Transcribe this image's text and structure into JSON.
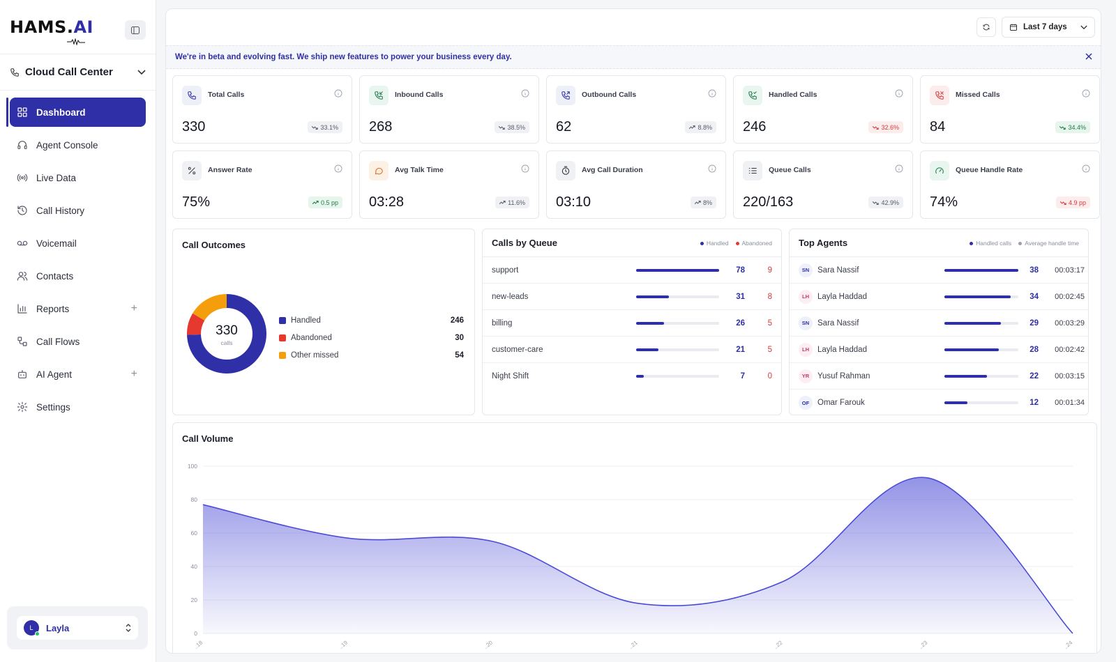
{
  "brand": {
    "name": "HAMS.",
    "suffix": "AI"
  },
  "workspace": {
    "name": "Cloud Call Center"
  },
  "nav": [
    {
      "label": "Dashboard",
      "icon": "grid-icon",
      "active": true
    },
    {
      "label": "Agent Console",
      "icon": "headset-icon"
    },
    {
      "label": "Live Data",
      "icon": "broadcast-icon"
    },
    {
      "label": "Call History",
      "icon": "history-icon"
    },
    {
      "label": "Voicemail",
      "icon": "voicemail-icon"
    },
    {
      "label": "Contacts",
      "icon": "users-icon"
    },
    {
      "label": "Reports",
      "icon": "bar-chart-icon",
      "expandable": true
    },
    {
      "label": "Call Flows",
      "icon": "flow-icon"
    },
    {
      "label": "AI Agent",
      "icon": "bot-icon",
      "expandable": true
    },
    {
      "label": "Settings",
      "icon": "gear-icon"
    }
  ],
  "user": {
    "initial": "L",
    "name": "Layla"
  },
  "topbar": {
    "range_label": "Last 7 days"
  },
  "banner": {
    "text": "We're in beta and evolving fast. We ship new features to power your business every day."
  },
  "stats": [
    {
      "title": "Total Calls",
      "value": "330",
      "delta": "33.1%",
      "trend": "down",
      "tone": "neutral",
      "icon": "phone-icon"
    },
    {
      "title": "Inbound Calls",
      "value": "268",
      "delta": "38.5%",
      "trend": "down",
      "tone": "neutral",
      "icon": "phone-incoming-icon"
    },
    {
      "title": "Outbound Calls",
      "value": "62",
      "delta": "8.8%",
      "trend": "up",
      "tone": "neutral",
      "icon": "phone-outgoing-icon"
    },
    {
      "title": "Handled Calls",
      "value": "246",
      "delta": "32.6%",
      "trend": "down",
      "tone": "red",
      "icon": "phone-handled-icon"
    },
    {
      "title": "Missed Calls",
      "value": "84",
      "delta": "34.4%",
      "trend": "down",
      "tone": "green",
      "icon": "phone-missed-icon"
    },
    {
      "title": "Answer Rate",
      "value": "75%",
      "delta": "0.5 pp",
      "trend": "up",
      "tone": "green",
      "icon": "percent-icon"
    },
    {
      "title": "Avg Talk Time",
      "value": "03:28",
      "delta": "11.6%",
      "trend": "up",
      "tone": "neutral",
      "icon": "chat-icon"
    },
    {
      "title": "Avg Call Duration",
      "value": "03:10",
      "delta": "8%",
      "trend": "up",
      "tone": "neutral",
      "icon": "timer-icon"
    },
    {
      "title": "Queue Calls",
      "value": "220/163",
      "delta": "42.9%",
      "trend": "down",
      "tone": "neutral",
      "icon": "list-icon"
    },
    {
      "title": "Queue Handle Rate",
      "value": "74%",
      "delta": "4.9 pp",
      "trend": "down",
      "tone": "red",
      "icon": "gauge-icon"
    }
  ],
  "outcomes": {
    "title": "Call Outcomes",
    "total": "330",
    "total_label": "calls",
    "items": [
      {
        "label": "Handled",
        "value": 246,
        "color": "#2f2fa8"
      },
      {
        "label": "Abandoned",
        "value": 30,
        "color": "#e5392f"
      },
      {
        "label": "Other missed",
        "value": 54,
        "color": "#f59e0b"
      }
    ]
  },
  "queues": {
    "title": "Calls by Queue",
    "legend": [
      "Handled",
      "Abandoned"
    ],
    "max": 78,
    "rows": [
      {
        "name": "support",
        "handled": 78,
        "abandoned": 9
      },
      {
        "name": "new-leads",
        "handled": 31,
        "abandoned": 8
      },
      {
        "name": "billing",
        "handled": 26,
        "abandoned": 5
      },
      {
        "name": "customer-care",
        "handled": 21,
        "abandoned": 5
      },
      {
        "name": "Night Shift",
        "handled": 7,
        "abandoned": 0
      }
    ]
  },
  "agents": {
    "title": "Top Agents",
    "legend": [
      "Handled calls",
      "Average handle time"
    ],
    "max": 38,
    "rows": [
      {
        "initials": "SN",
        "name": "Sara Nassif",
        "calls": 38,
        "time": "00:03:17",
        "color": "#eef0fb",
        "fg": "#2f2fa8"
      },
      {
        "initials": "LH",
        "name": "Layla Haddad",
        "calls": 34,
        "time": "00:02:45",
        "color": "#fdeef3",
        "fg": "#c0396b"
      },
      {
        "initials": "SN",
        "name": "Sara Nassif",
        "calls": 29,
        "time": "00:03:29",
        "color": "#eef0fb",
        "fg": "#2f2fa8"
      },
      {
        "initials": "LH",
        "name": "Layla Haddad",
        "calls": 28,
        "time": "00:02:42",
        "color": "#fdeef3",
        "fg": "#c0396b"
      },
      {
        "initials": "YR",
        "name": "Yusuf Rahman",
        "calls": 22,
        "time": "00:03:15",
        "color": "#fdeef3",
        "fg": "#c0396b"
      },
      {
        "initials": "OF",
        "name": "Omar Farouk",
        "calls": 12,
        "time": "00:01:34",
        "color": "#eef0fb",
        "fg": "#2f2fa8"
      }
    ]
  },
  "chart_data": {
    "type": "area",
    "title": "Call Volume",
    "x": [
      "..18",
      "..19",
      "..20",
      "..21",
      "..22",
      "..23",
      "..24"
    ],
    "series": [
      {
        "values": [
          77,
          57,
          55,
          18,
          31,
          93,
          0
        ]
      }
    ],
    "ylim": [
      0,
      100
    ],
    "yticks": [
      0,
      20,
      40,
      60,
      80,
      100
    ],
    "grid": true,
    "color": "#4b4bd6"
  }
}
